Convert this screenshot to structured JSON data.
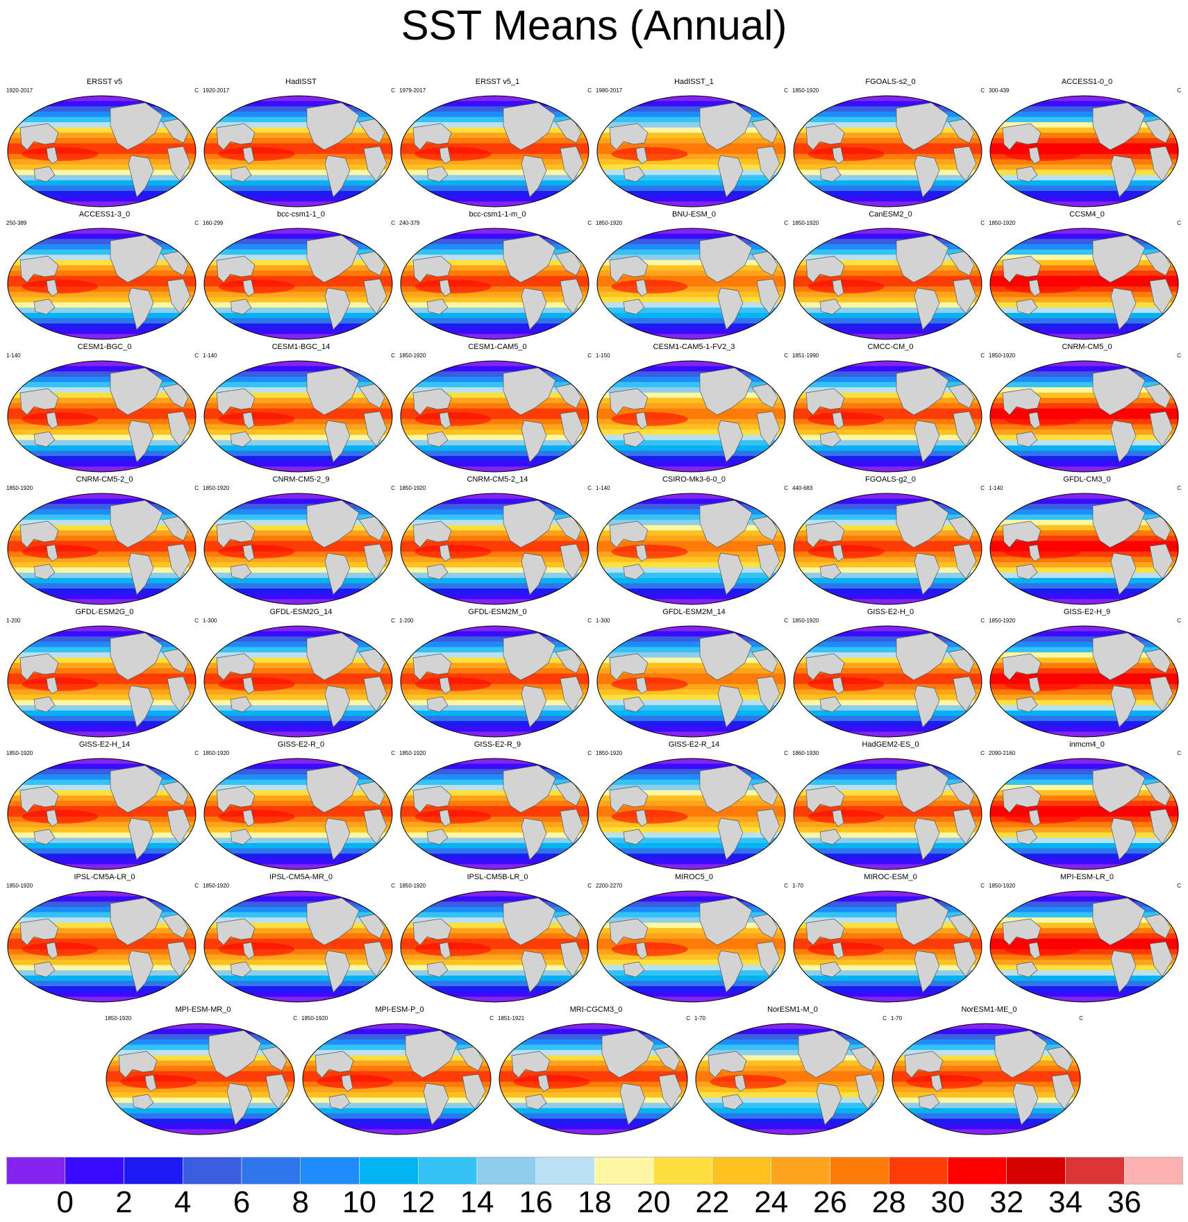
{
  "title": "SST Means (Annual)",
  "chart_data": {
    "type": "heatmap",
    "title": "SST Means (Annual)",
    "units": "C",
    "colorbar": {
      "levels": [
        0,
        2,
        4,
        6,
        8,
        10,
        12,
        14,
        16,
        18,
        20,
        22,
        24,
        26,
        28,
        30,
        32,
        34,
        36
      ],
      "tick_labels": [
        "0",
        "2",
        "4",
        "6",
        "8",
        "10",
        "12",
        "14",
        "16",
        "18",
        "20",
        "22",
        "24",
        "26",
        "28",
        "30",
        "32",
        "34",
        "36"
      ],
      "colors": [
        "#8425ef",
        "#3a0cff",
        "#1c1cf0",
        "#3b5ddf",
        "#2f76ec",
        "#1e8cfa",
        "#02b3f4",
        "#35c3f5",
        "#8ecdec",
        "#b9e1f3",
        "#fef7a4",
        "#fddf3d",
        "#fec11f",
        "#fea31c",
        "#fe7b09",
        "#fe3d06",
        "#fe0000",
        "#d40000",
        "#db3636",
        "#feb1b1"
      ]
    },
    "land_color": "#d3d3d3",
    "panels": [
      {
        "name": "ERSST v5",
        "period": "1920-2017"
      },
      {
        "name": "HadISST",
        "period": "1920-2017"
      },
      {
        "name": "ERSST v5_1",
        "period": "1979-2017"
      },
      {
        "name": "HadISST_1",
        "period": "1980-2017"
      },
      {
        "name": "FGOALS-s2_0",
        "period": "1850-1920"
      },
      {
        "name": "ACCESS1-0_0",
        "period": "300-439"
      },
      {
        "name": "ACCESS1-3_0",
        "period": "250-389"
      },
      {
        "name": "bcc-csm1-1_0",
        "period": "160-299"
      },
      {
        "name": "bcc-csm1-1-m_0",
        "period": "240-379"
      },
      {
        "name": "BNU-ESM_0",
        "period": "1850-1920"
      },
      {
        "name": "CanESM2_0",
        "period": "1850-1920"
      },
      {
        "name": "CCSM4_0",
        "period": "1850-1920"
      },
      {
        "name": "CESM1-BGC_0",
        "period": "1-140"
      },
      {
        "name": "CESM1-BGC_14",
        "period": "1-140"
      },
      {
        "name": "CESM1-CAM5_0",
        "period": "1850-1920"
      },
      {
        "name": "CESM1-CAM5-1-FV2_3",
        "period": "1-150"
      },
      {
        "name": "CMCC-CM_0",
        "period": "1851-1990"
      },
      {
        "name": "CNRM-CM5_0",
        "period": "1850-1920"
      },
      {
        "name": "CNRM-CM5-2_0",
        "period": "1850-1920"
      },
      {
        "name": "CNRM-CM5-2_9",
        "period": "1850-1920"
      },
      {
        "name": "CNRM-CM5-2_14",
        "period": "1850-1920"
      },
      {
        "name": "CSIRO-Mk3-6-0_0",
        "period": "1-140"
      },
      {
        "name": "FGOALS-g2_0",
        "period": "440-683"
      },
      {
        "name": "GFDL-CM3_0",
        "period": "1-140"
      },
      {
        "name": "GFDL-ESM2G_0",
        "period": "1-200"
      },
      {
        "name": "GFDL-ESM2G_14",
        "period": "1-300"
      },
      {
        "name": "GFDL-ESM2M_0",
        "period": "1-200"
      },
      {
        "name": "GFDL-ESM2M_14",
        "period": "1-300"
      },
      {
        "name": "GISS-E2-H_0",
        "period": "1850-1920"
      },
      {
        "name": "GISS-E2-H_9",
        "period": "1850-1920"
      },
      {
        "name": "GISS-E2-H_14",
        "period": "1850-1920"
      },
      {
        "name": "GISS-E2-R_0",
        "period": "1850-1920"
      },
      {
        "name": "GISS-E2-R_9",
        "period": "1850-1920"
      },
      {
        "name": "GISS-E2-R_14",
        "period": "1850-1920"
      },
      {
        "name": "HadGEM2-ES_0",
        "period": "1860-1930"
      },
      {
        "name": "inmcm4_0",
        "period": "2090-2160"
      },
      {
        "name": "IPSL-CM5A-LR_0",
        "period": "1850-1920"
      },
      {
        "name": "IPSL-CM5A-MR_0",
        "period": "1850-1920"
      },
      {
        "name": "IPSL-CM5B-LR_0",
        "period": "1850-1920"
      },
      {
        "name": "MIROC5_0",
        "period": "2200-2270"
      },
      {
        "name": "MIROC-ESM_0",
        "period": "1-70"
      },
      {
        "name": "MPI-ESM-LR_0",
        "period": "1850-1920"
      },
      {
        "name": "MPI-ESM-MR_0",
        "period": "1850-1920"
      },
      {
        "name": "MPI-ESM-P_0",
        "period": "1850-1920"
      },
      {
        "name": "MRI-CGCM3_0",
        "period": "1851-1921"
      },
      {
        "name": "NorESM1-M_0",
        "period": "1-70"
      },
      {
        "name": "NorESM1-ME_0",
        "period": "1-70"
      }
    ]
  }
}
